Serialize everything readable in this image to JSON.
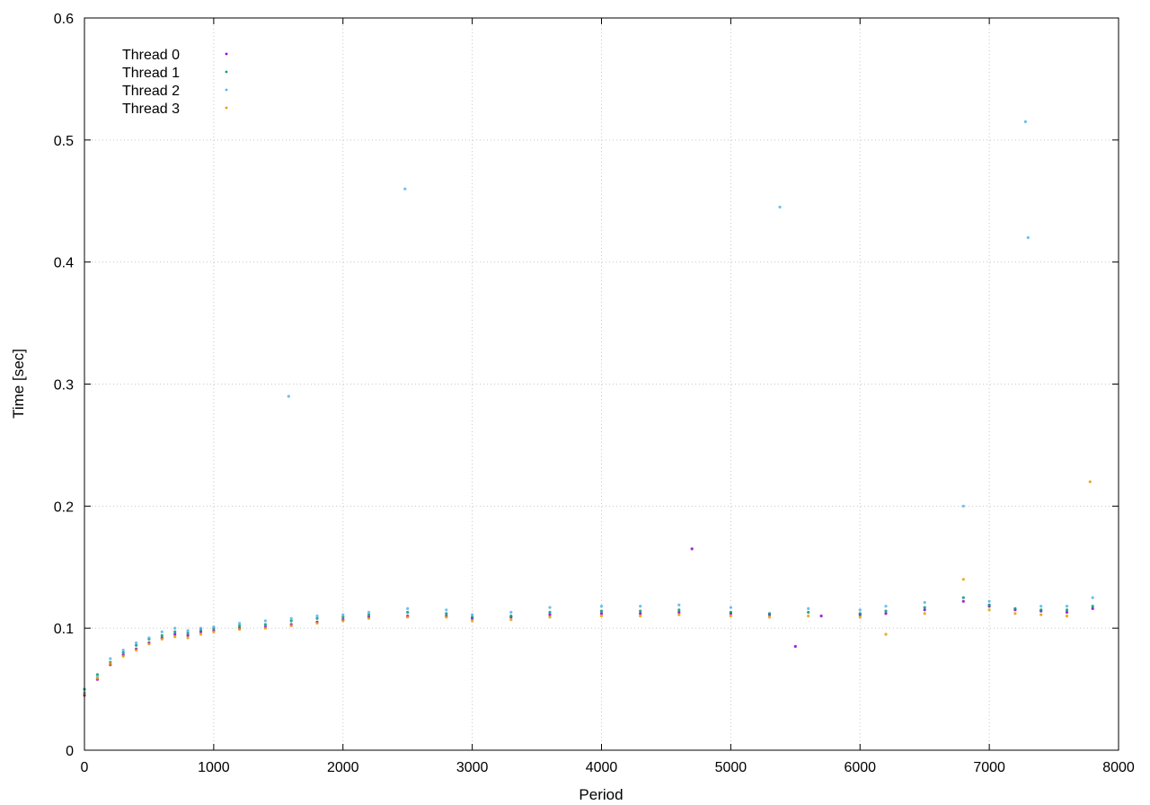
{
  "chart_data": {
    "type": "scatter",
    "title": "",
    "xlabel": "Period",
    "ylabel": "Time [sec]",
    "xlim": [
      0,
      8000
    ],
    "ylim": [
      0,
      0.6
    ],
    "x_ticks": [
      0,
      1000,
      2000,
      3000,
      4000,
      5000,
      6000,
      7000,
      8000
    ],
    "x_tick_labels": [
      "0",
      "1000",
      "2000",
      "3000",
      "4000",
      "5000",
      "6000",
      "7000",
      "8000"
    ],
    "y_ticks": [
      0,
      0.1,
      0.2,
      0.3,
      0.4,
      0.5,
      0.6
    ],
    "y_tick_labels": [
      "0",
      "0.1",
      "0.2",
      "0.3",
      "0.4",
      "0.5",
      "0.6"
    ],
    "grid": true,
    "legend_position": "top-left",
    "series": [
      {
        "name": "Thread 0",
        "color": "#9400d3",
        "points": [
          [
            0,
            0.045
          ],
          [
            100,
            0.058
          ],
          [
            200,
            0.07
          ],
          [
            300,
            0.078
          ],
          [
            400,
            0.083
          ],
          [
            500,
            0.088
          ],
          [
            600,
            0.092
          ],
          [
            700,
            0.095
          ],
          [
            800,
            0.094
          ],
          [
            900,
            0.097
          ],
          [
            1000,
            0.098
          ],
          [
            1200,
            0.1
          ],
          [
            1400,
            0.101
          ],
          [
            1600,
            0.103
          ],
          [
            1800,
            0.105
          ],
          [
            2000,
            0.107
          ],
          [
            2200,
            0.109
          ],
          [
            2500,
            0.11
          ],
          [
            2800,
            0.11
          ],
          [
            3000,
            0.108
          ],
          [
            3300,
            0.109
          ],
          [
            3600,
            0.111
          ],
          [
            4000,
            0.112
          ],
          [
            4300,
            0.112
          ],
          [
            4600,
            0.113
          ],
          [
            4700,
            0.165
          ],
          [
            5000,
            0.112
          ],
          [
            5300,
            0.111
          ],
          [
            5500,
            0.085
          ],
          [
            5700,
            0.11
          ],
          [
            6000,
            0.111
          ],
          [
            6200,
            0.112
          ],
          [
            6500,
            0.115
          ],
          [
            6800,
            0.122
          ],
          [
            7000,
            0.118
          ],
          [
            7200,
            0.115
          ],
          [
            7400,
            0.114
          ],
          [
            7600,
            0.113
          ],
          [
            7800,
            0.116
          ]
        ]
      },
      {
        "name": "Thread 1",
        "color": "#009e73",
        "points": [
          [
            0,
            0.05
          ],
          [
            100,
            0.062
          ],
          [
            200,
            0.072
          ],
          [
            300,
            0.08
          ],
          [
            400,
            0.086
          ],
          [
            500,
            0.091
          ],
          [
            600,
            0.094
          ],
          [
            700,
            0.097
          ],
          [
            800,
            0.096
          ],
          [
            900,
            0.099
          ],
          [
            1000,
            0.1
          ],
          [
            1200,
            0.102
          ],
          [
            1400,
            0.103
          ],
          [
            1600,
            0.106
          ],
          [
            1800,
            0.108
          ],
          [
            2000,
            0.109
          ],
          [
            2200,
            0.111
          ],
          [
            2500,
            0.113
          ],
          [
            2800,
            0.112
          ],
          [
            3000,
            0.109
          ],
          [
            3300,
            0.11
          ],
          [
            3600,
            0.113
          ],
          [
            4000,
            0.114
          ],
          [
            4300,
            0.114
          ],
          [
            4600,
            0.115
          ],
          [
            5000,
            0.113
          ],
          [
            5300,
            0.112
          ],
          [
            5600,
            0.113
          ],
          [
            6000,
            0.112
          ],
          [
            6200,
            0.114
          ],
          [
            6500,
            0.117
          ],
          [
            6800,
            0.125
          ],
          [
            7000,
            0.119
          ],
          [
            7200,
            0.116
          ],
          [
            7400,
            0.115
          ],
          [
            7600,
            0.115
          ],
          [
            7800,
            0.118
          ]
        ]
      },
      {
        "name": "Thread 2",
        "color": "#56b4e9",
        "points": [
          [
            0,
            0.047
          ],
          [
            100,
            0.06
          ],
          [
            200,
            0.075
          ],
          [
            300,
            0.082
          ],
          [
            400,
            0.088
          ],
          [
            500,
            0.092
          ],
          [
            600,
            0.097
          ],
          [
            700,
            0.1
          ],
          [
            800,
            0.098
          ],
          [
            900,
            0.1
          ],
          [
            1000,
            0.101
          ],
          [
            1200,
            0.104
          ],
          [
            1400,
            0.106
          ],
          [
            1580,
            0.29
          ],
          [
            1600,
            0.108
          ],
          [
            1800,
            0.11
          ],
          [
            2000,
            0.111
          ],
          [
            2200,
            0.113
          ],
          [
            2480,
            0.46
          ],
          [
            2500,
            0.116
          ],
          [
            2800,
            0.115
          ],
          [
            3000,
            0.111
          ],
          [
            3300,
            0.113
          ],
          [
            3600,
            0.117
          ],
          [
            4000,
            0.118
          ],
          [
            4300,
            0.118
          ],
          [
            4600,
            0.119
          ],
          [
            5000,
            0.117
          ],
          [
            5380,
            0.445
          ],
          [
            5600,
            0.116
          ],
          [
            6000,
            0.115
          ],
          [
            6200,
            0.118
          ],
          [
            6500,
            0.121
          ],
          [
            6800,
            0.2
          ],
          [
            7000,
            0.122
          ],
          [
            7280,
            0.515
          ],
          [
            7300,
            0.42
          ],
          [
            7400,
            0.118
          ],
          [
            7600,
            0.118
          ],
          [
            7800,
            0.125
          ]
        ]
      },
      {
        "name": "Thread 3",
        "color": "#e69f00",
        "points": [
          [
            0,
            0.046
          ],
          [
            100,
            0.059
          ],
          [
            200,
            0.071
          ],
          [
            300,
            0.077
          ],
          [
            400,
            0.082
          ],
          [
            500,
            0.087
          ],
          [
            600,
            0.091
          ],
          [
            700,
            0.093
          ],
          [
            800,
            0.092
          ],
          [
            900,
            0.095
          ],
          [
            1000,
            0.097
          ],
          [
            1200,
            0.099
          ],
          [
            1400,
            0.1
          ],
          [
            1600,
            0.102
          ],
          [
            1800,
            0.104
          ],
          [
            2000,
            0.106
          ],
          [
            2200,
            0.108
          ],
          [
            2500,
            0.109
          ],
          [
            2800,
            0.109
          ],
          [
            3000,
            0.106
          ],
          [
            3300,
            0.107
          ],
          [
            3600,
            0.109
          ],
          [
            4000,
            0.11
          ],
          [
            4300,
            0.11
          ],
          [
            4600,
            0.111
          ],
          [
            5000,
            0.11
          ],
          [
            5300,
            0.109
          ],
          [
            5600,
            0.11
          ],
          [
            6000,
            0.109
          ],
          [
            6200,
            0.095
          ],
          [
            6500,
            0.112
          ],
          [
            6800,
            0.14
          ],
          [
            7000,
            0.115
          ],
          [
            7200,
            0.112
          ],
          [
            7400,
            0.111
          ],
          [
            7600,
            0.11
          ],
          [
            7780,
            0.22
          ]
        ]
      }
    ]
  }
}
